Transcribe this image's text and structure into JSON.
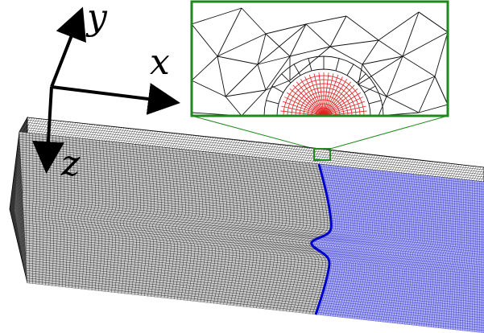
{
  "axes": {
    "x_label": "x",
    "y_label": "y",
    "z_label": "z"
  },
  "colors": {
    "background": "#ffffff",
    "solid_mesh": "#000000",
    "fluid_mesh": "#3b3bd6",
    "fluid_fill": "#aeb0ee",
    "interface_line": "#0000cc",
    "inset_frame": "#1e8a1e",
    "fine_mesh": "#e02020",
    "coarse_mesh": "#111111",
    "axis_arrow": "#000000"
  }
}
